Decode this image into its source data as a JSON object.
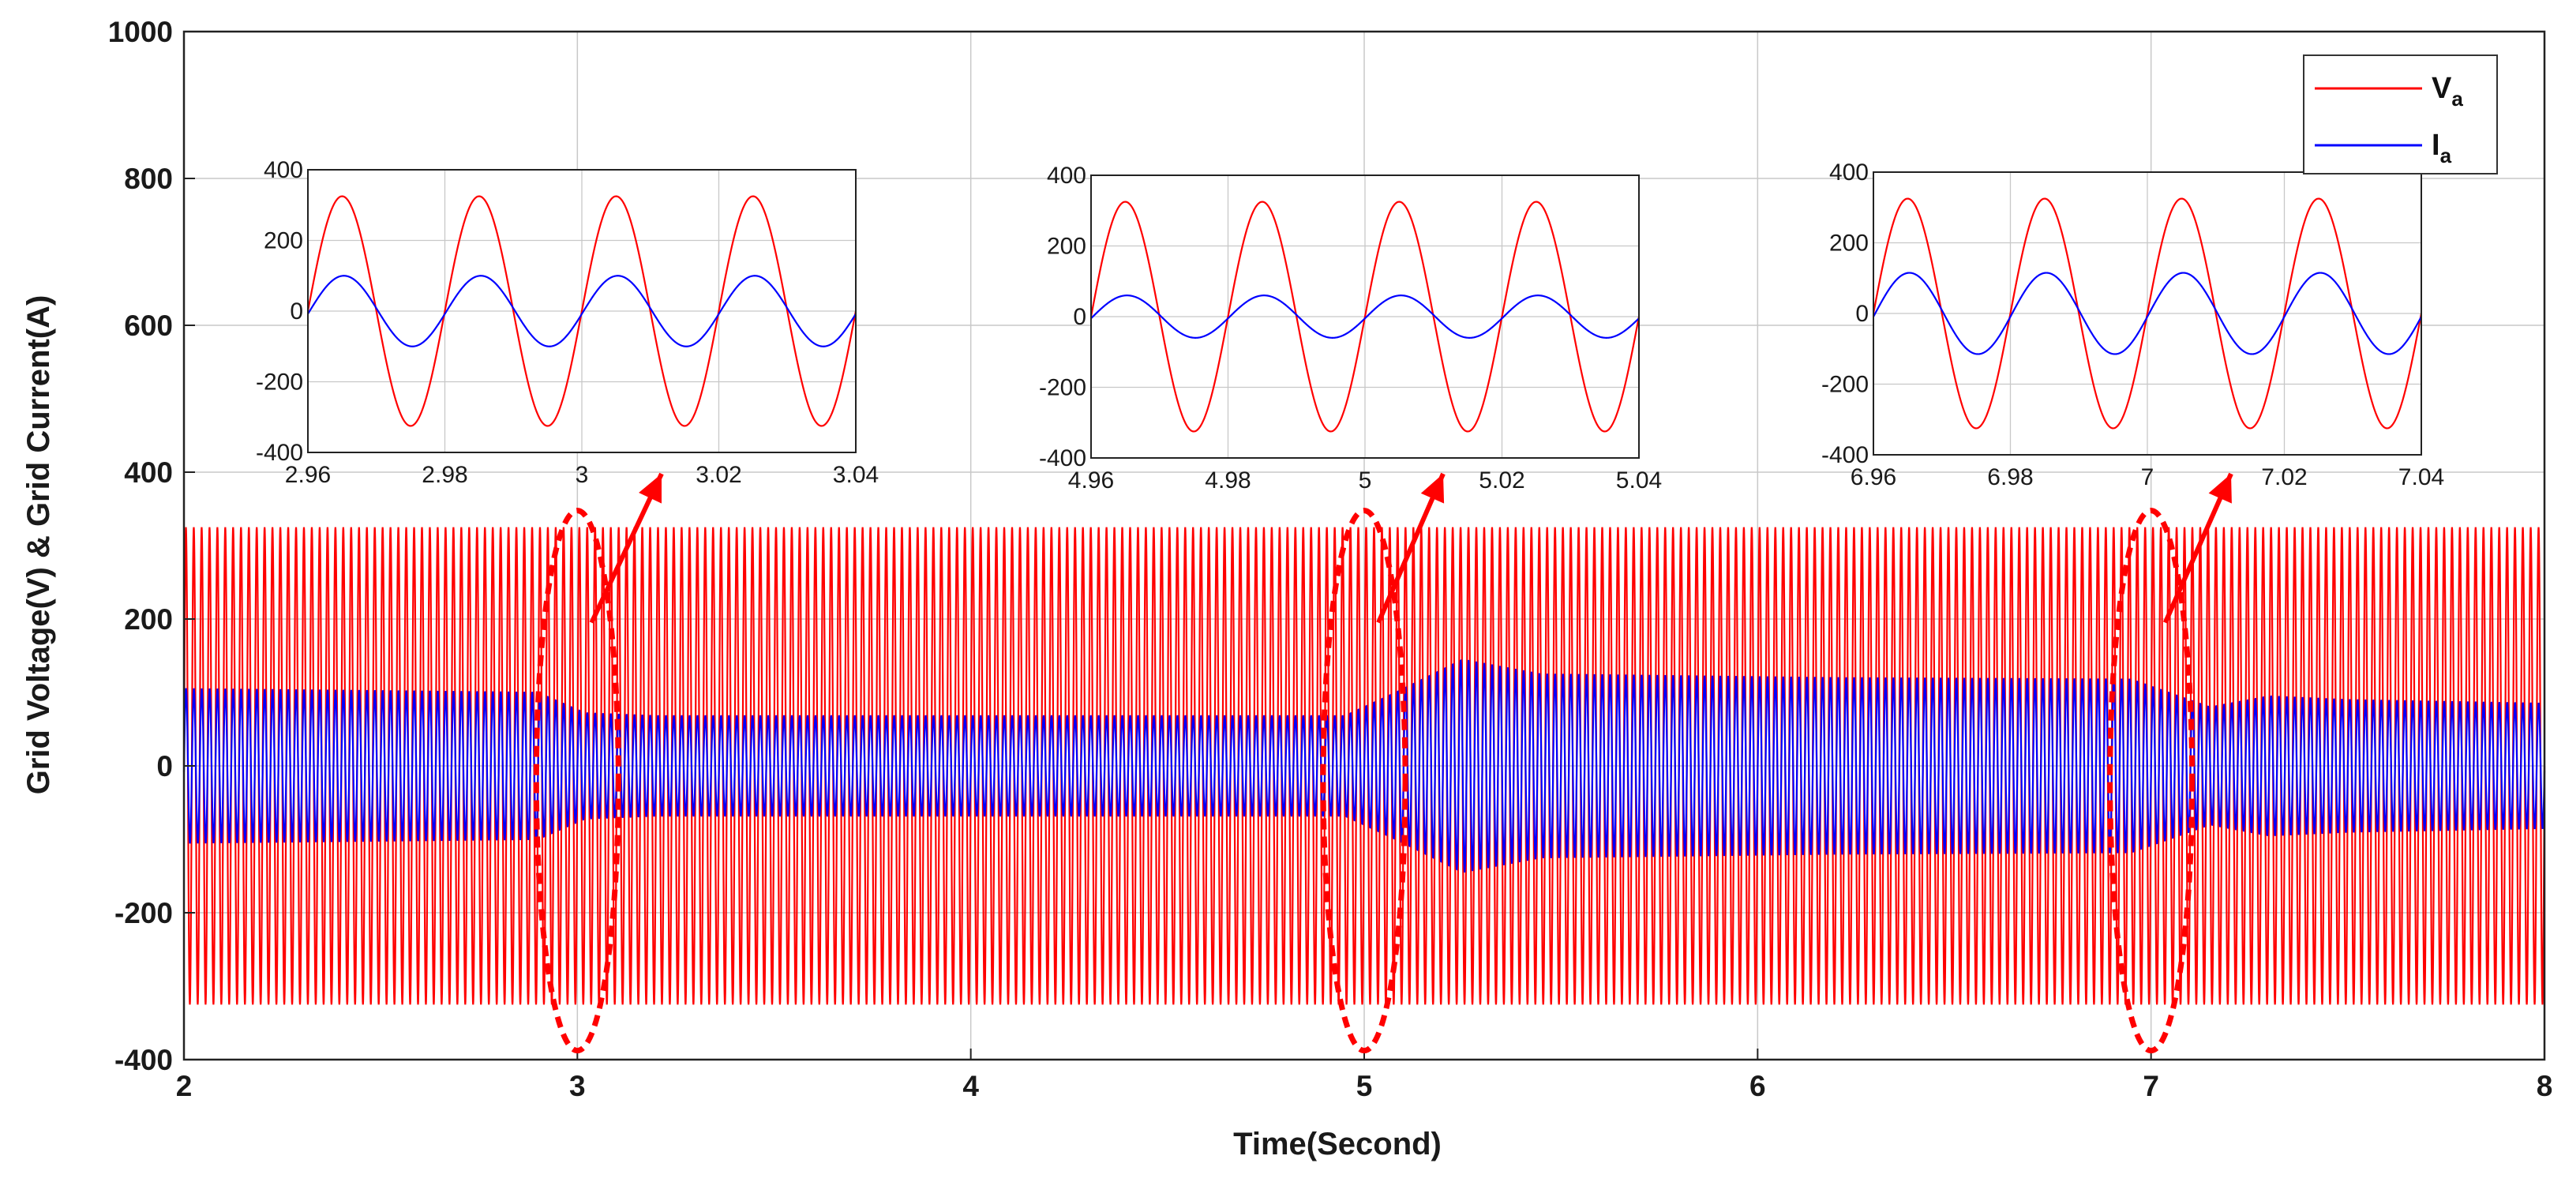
{
  "chart_data": {
    "type": "line",
    "title": "",
    "xlabel": "Time(Second)",
    "ylabel": "Grid Voltage(V) & Grid Current(A)",
    "xlim": [
      2,
      8
    ],
    "ylim": [
      -400,
      1000
    ],
    "x_ticks": [
      2,
      3,
      4,
      5,
      6,
      7,
      8
    ],
    "y_ticks": [
      -400,
      -200,
      0,
      200,
      400,
      600,
      800,
      1000
    ],
    "grid": true,
    "frequency_hz": 50,
    "legend": {
      "position": "top-right",
      "entries": [
        {
          "main": "V",
          "sub": "a",
          "color": "#ff0000"
        },
        {
          "main": "I",
          "sub": "a",
          "color": "#0000ff"
        }
      ]
    },
    "series": [
      {
        "name": "Va",
        "color": "#ff0000",
        "kind": "sinusoid",
        "amplitude_points": [
          [
            2,
            325
          ],
          [
            8,
            325
          ]
        ]
      },
      {
        "name": "Ia",
        "color": "#0000ff",
        "kind": "sinusoid",
        "amplitude_points": [
          [
            2,
            105
          ],
          [
            2.9,
            100
          ],
          [
            3.02,
            72
          ],
          [
            3.2,
            68
          ],
          [
            4.95,
            68
          ],
          [
            5.08,
            100
          ],
          [
            5.25,
            145
          ],
          [
            5.45,
            125
          ],
          [
            6.2,
            120
          ],
          [
            6.95,
            118
          ],
          [
            7.15,
            80
          ],
          [
            7.3,
            95
          ],
          [
            7.5,
            90
          ],
          [
            8,
            85
          ]
        ]
      }
    ],
    "insets": [
      {
        "xlim": [
          2.96,
          3.04
        ],
        "ylim": [
          -400,
          400
        ],
        "x_ticks": [
          2.96,
          2.98,
          3,
          3.02,
          3.04
        ],
        "y_ticks": [
          -400,
          -200,
          0,
          200,
          400
        ],
        "voltage_amplitude": 325,
        "current_amplitude": 100,
        "highlight_time": 3
      },
      {
        "xlim": [
          4.96,
          5.04
        ],
        "ylim": [
          -400,
          400
        ],
        "x_ticks": [
          4.96,
          4.98,
          5,
          5.02,
          5.04
        ],
        "y_ticks": [
          -400,
          -200,
          0,
          200,
          400
        ],
        "voltage_amplitude": 325,
        "current_amplitude": 60,
        "highlight_time": 5
      },
      {
        "xlim": [
          6.96,
          7.04
        ],
        "ylim": [
          -400,
          400
        ],
        "x_ticks": [
          6.96,
          6.98,
          7,
          7.02,
          7.04
        ],
        "y_ticks": [
          -400,
          -200,
          0,
          200,
          400
        ],
        "voltage_amplitude": 325,
        "current_amplitude": 115,
        "highlight_time": 7
      }
    ]
  }
}
